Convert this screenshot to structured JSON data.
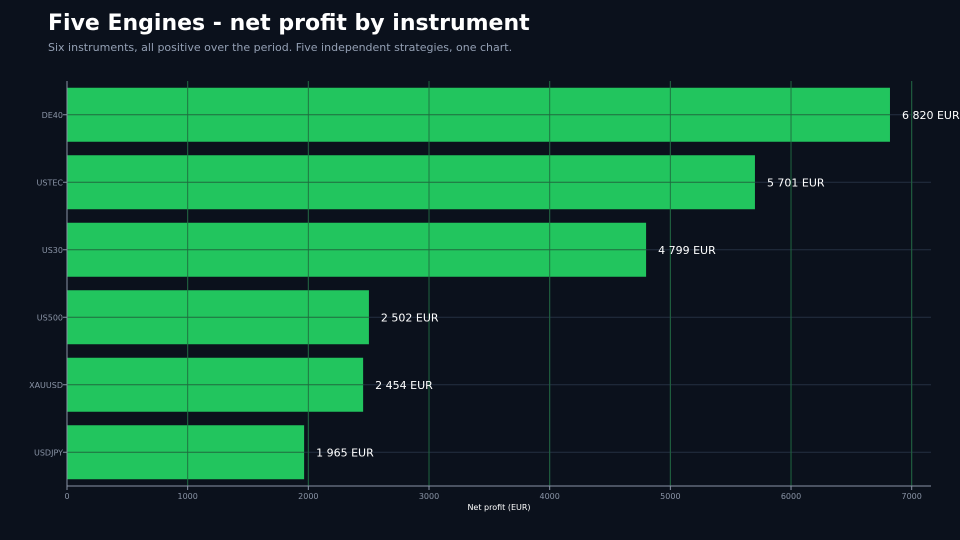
{
  "header": {
    "title": "Five Engines - net profit by instrument",
    "subtitle": "Six instruments, all positive over the period. Five independent strategies, one chart."
  },
  "colors": {
    "background": "#0b111c",
    "bar": "#22c55e",
    "grid": "#243041",
    "axis": "#8a94a6",
    "tick_text": "#8a94a6",
    "value_text": "#ffffff"
  },
  "chart_data": {
    "type": "bar",
    "orientation": "horizontal",
    "categories": [
      "DE40",
      "USTEC",
      "US30",
      "US500",
      "XAUUSD",
      "USDJPY"
    ],
    "values": [
      6820,
      5701,
      4799,
      2502,
      2454,
      1965
    ],
    "data_labels": [
      "6 820 EUR",
      "5 701 EUR",
      "4 799 EUR",
      "2 502 EUR",
      "2 454 EUR",
      "1 965 EUR"
    ],
    "xlabel": "Net profit (EUR)",
    "ylabel": "",
    "xlim": [
      0,
      7160
    ],
    "xticks": [
      0,
      1000,
      2000,
      3000,
      4000,
      5000,
      6000,
      7000
    ],
    "grid": true
  }
}
